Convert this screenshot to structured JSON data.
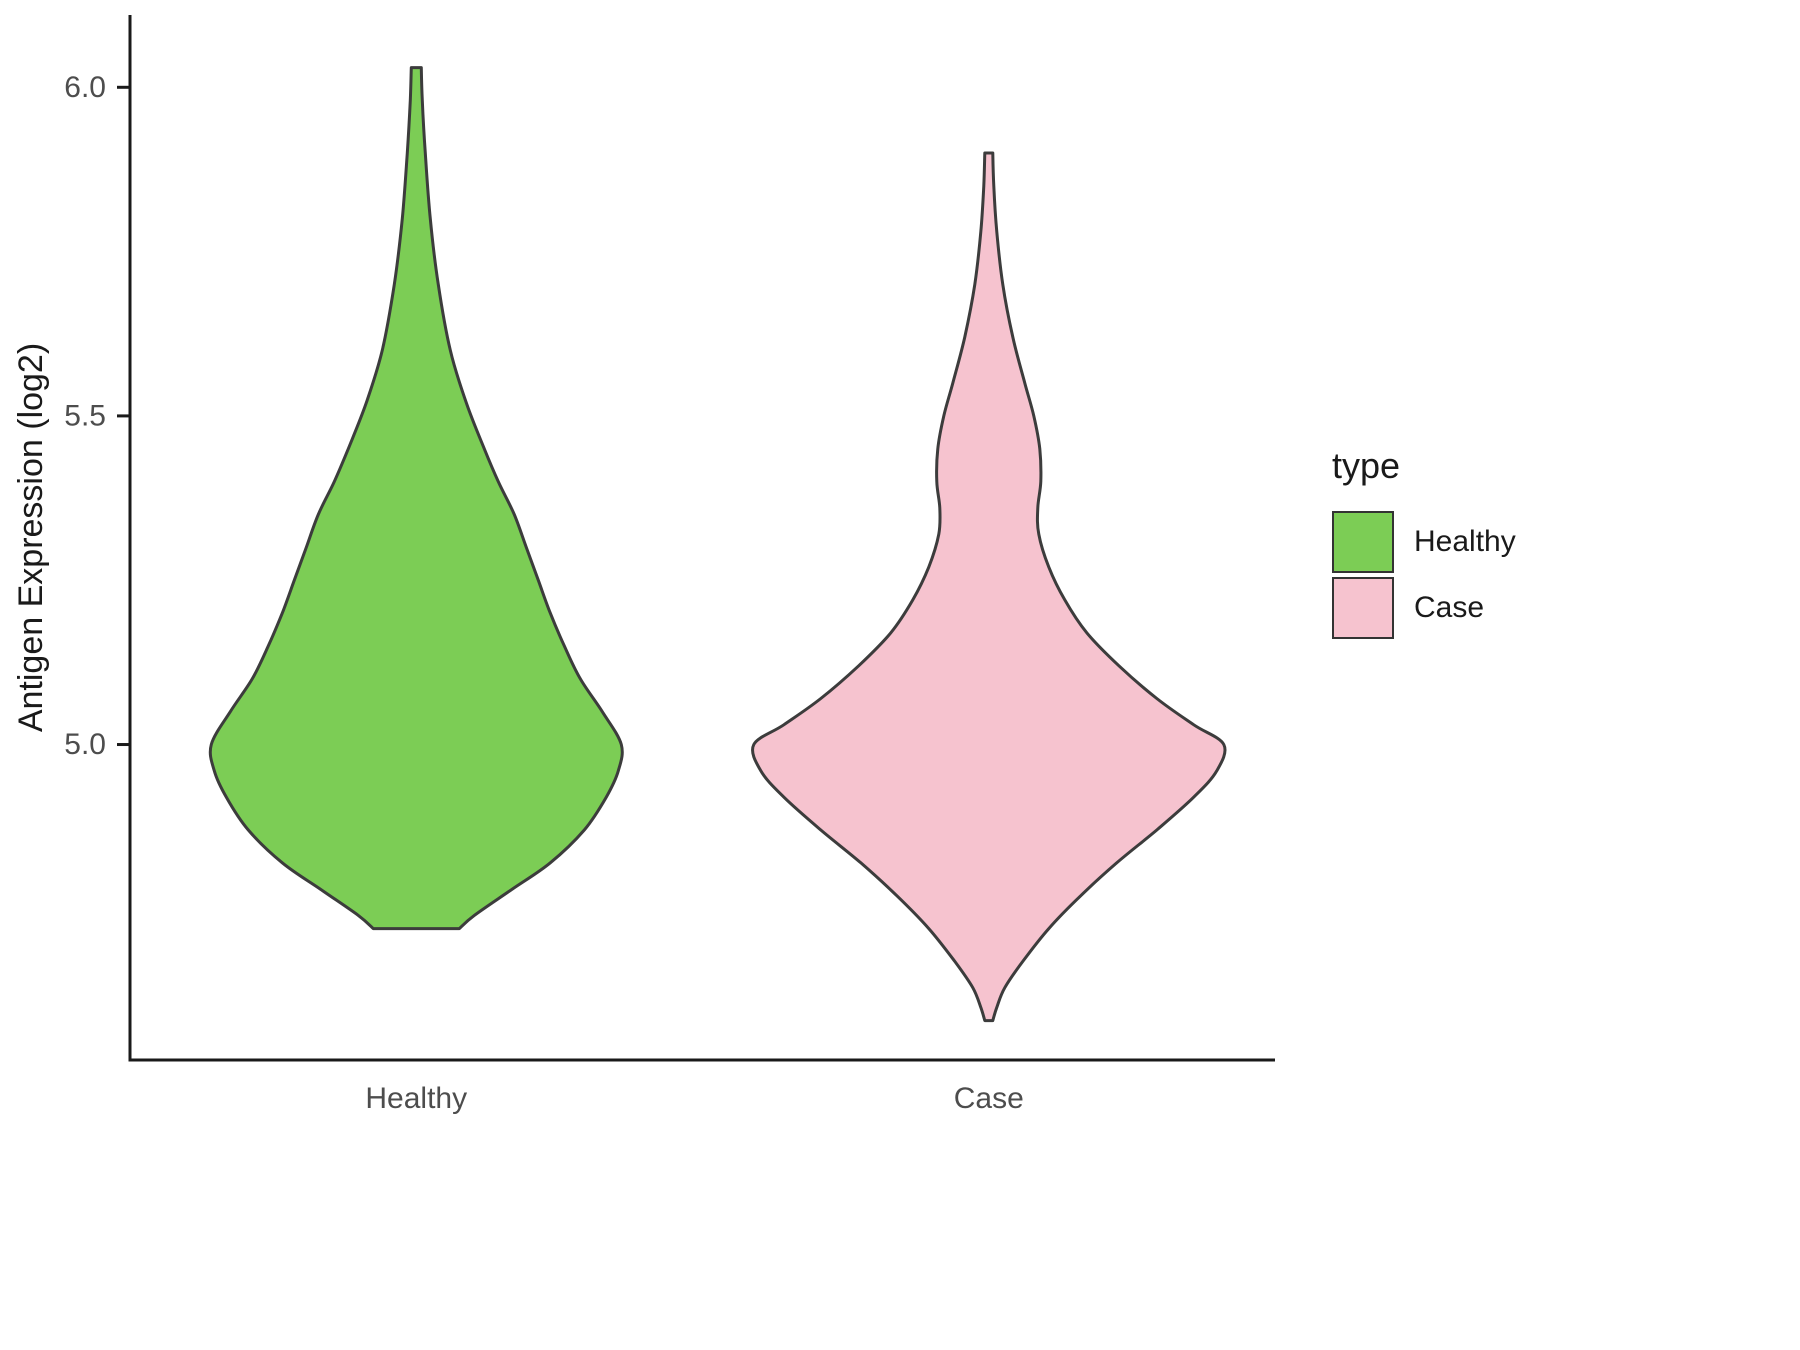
{
  "figure": {
    "background": "#ffffff",
    "axis_color": "#1a1a1a",
    "tick_text_color": "#4d4d4d",
    "outline_color": "#3c3c3c"
  },
  "chart_data": {
    "type": "violin",
    "title": "",
    "xlabel": "",
    "ylabel": "Antigen Expression (log2)",
    "categories": [
      "Healthy",
      "Case"
    ],
    "ylim": [
      4.52,
      6.11
    ],
    "grid": "off",
    "yticks": [
      {
        "value": 5.0,
        "label": "5.0"
      },
      {
        "value": 5.5,
        "label": "5.5"
      },
      {
        "value": 6.0,
        "label": "6.0"
      }
    ],
    "legend": {
      "title": "type",
      "position": "right",
      "entries": [
        {
          "label": "Healthy",
          "color": "#7ccd55"
        },
        {
          "label": "Case",
          "color": "#f6c3cf"
        }
      ]
    },
    "series": [
      {
        "name": "Healthy",
        "fill": "#7ccd55",
        "value_range": [
          4.72,
          6.03
        ],
        "peak_value": 5.0,
        "profile": [
          [
            6.03,
            5
          ],
          [
            5.98,
            6
          ],
          [
            5.9,
            9
          ],
          [
            5.8,
            14
          ],
          [
            5.7,
            22
          ],
          [
            5.6,
            34
          ],
          [
            5.52,
            50
          ],
          [
            5.45,
            68
          ],
          [
            5.4,
            82
          ],
          [
            5.35,
            98
          ],
          [
            5.3,
            110
          ],
          [
            5.25,
            122
          ],
          [
            5.2,
            134
          ],
          [
            5.15,
            148
          ],
          [
            5.1,
            164
          ],
          [
            5.05,
            186
          ],
          [
            5.0,
            205
          ],
          [
            4.96,
            202
          ],
          [
            4.92,
            190
          ],
          [
            4.87,
            168
          ],
          [
            4.82,
            134
          ],
          [
            4.78,
            96
          ],
          [
            4.74,
            58
          ],
          [
            4.72,
            43
          ]
        ]
      },
      {
        "name": "Case",
        "fill": "#f6c3cf",
        "value_range": [
          4.58,
          5.9
        ],
        "peak_value": 5.0,
        "profile": [
          [
            5.9,
            4
          ],
          [
            5.85,
            5
          ],
          [
            5.78,
            8
          ],
          [
            5.7,
            14
          ],
          [
            5.62,
            24
          ],
          [
            5.55,
            36
          ],
          [
            5.5,
            45
          ],
          [
            5.45,
            51
          ],
          [
            5.4,
            52
          ],
          [
            5.36,
            49
          ],
          [
            5.32,
            50
          ],
          [
            5.27,
            60
          ],
          [
            5.22,
            76
          ],
          [
            5.17,
            98
          ],
          [
            5.12,
            130
          ],
          [
            5.07,
            168
          ],
          [
            5.03,
            205
          ],
          [
            5.0,
            235
          ],
          [
            4.96,
            228
          ],
          [
            4.92,
            205
          ],
          [
            4.87,
            168
          ],
          [
            4.82,
            128
          ],
          [
            4.77,
            92
          ],
          [
            4.72,
            60
          ],
          [
            4.67,
            34
          ],
          [
            4.63,
            16
          ],
          [
            4.6,
            8
          ],
          [
            4.58,
            4
          ]
        ]
      }
    ]
  }
}
